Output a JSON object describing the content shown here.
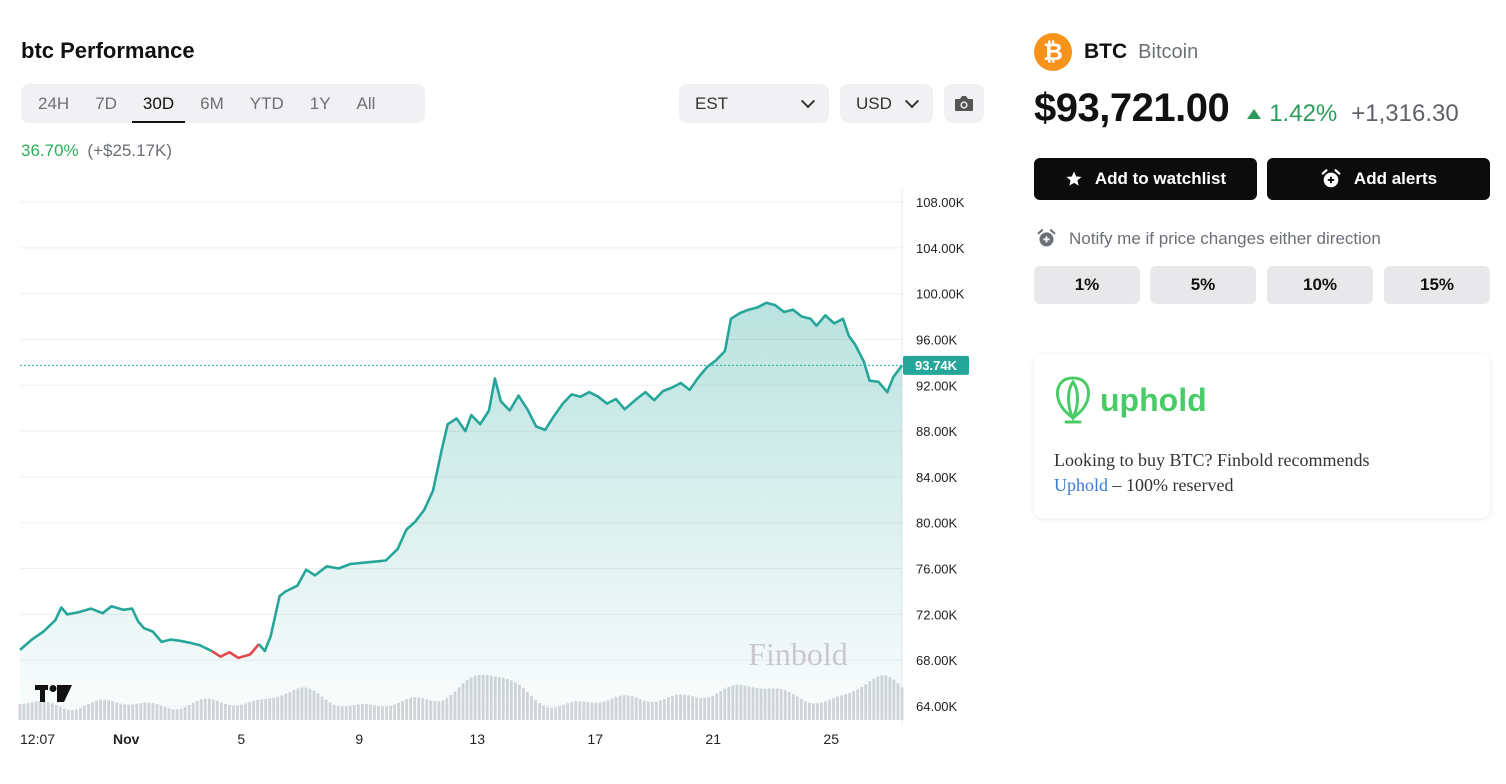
{
  "header": {
    "title": "btc Performance"
  },
  "range_tabs": [
    "24H",
    "7D",
    "30D",
    "6M",
    "YTD",
    "1Y",
    "All"
  ],
  "active_range": "30D",
  "timezone_select": {
    "value": "EST"
  },
  "currency_select": {
    "value": "USD"
  },
  "performance": {
    "percent": "36.70%",
    "absolute": "(+$25.17K)"
  },
  "coin": {
    "symbol": "BTC",
    "name": "Bitcoin",
    "price": "$93,721.00",
    "change_pct": "1.42%",
    "change_abs": "+1,316.30",
    "logo_glyph": "₿"
  },
  "actions": {
    "watchlist_label": "Add to watchlist",
    "alerts_label": "Add alerts"
  },
  "notify": {
    "text": "Notify me if price changes either direction",
    "options": [
      "1%",
      "5%",
      "10%",
      "15%"
    ]
  },
  "promo": {
    "brand": "uphold",
    "line1": "Looking to buy BTC? Finbold recommends",
    "link_text": "Uphold",
    "line2_rest": " – 100% reserved"
  },
  "chart_data": {
    "type": "line",
    "title": "",
    "current_price_label": "93.74K",
    "current_price": 93.74,
    "watermark": "Finbold",
    "ylim": [
      64,
      108
    ],
    "y_unit": "K",
    "y_ticks": [
      108,
      104,
      100,
      96,
      92,
      88,
      84,
      80,
      76,
      72,
      68,
      64
    ],
    "y_tick_labels": [
      "108.00K",
      "104.00K",
      "100.00K",
      "96.00K",
      "92.00K",
      "88.00K",
      "84.00K",
      "80.00K",
      "76.00K",
      "72.00K",
      "68.00K",
      "64.00K"
    ],
    "x_tick_labels": [
      {
        "label": "12:07",
        "day": 0.0
      },
      {
        "label": "Nov",
        "day": 3.6
      },
      {
        "label": "5",
        "day": 7.5
      },
      {
        "label": "9",
        "day": 11.5
      },
      {
        "label": "13",
        "day": 15.5
      },
      {
        "label": "17",
        "day": 19.5
      },
      {
        "label": "21",
        "day": 23.5
      },
      {
        "label": "25",
        "day": 27.5
      }
    ],
    "x_days_span": 29.9,
    "series": [
      {
        "values": [
          [
            0.0,
            68.9
          ],
          [
            0.4,
            69.8
          ],
          [
            0.8,
            70.5
          ],
          [
            1.2,
            71.5
          ],
          [
            1.4,
            72.6
          ],
          [
            1.6,
            72.0
          ],
          [
            2.0,
            72.2
          ],
          [
            2.4,
            72.5
          ],
          [
            2.8,
            72.1
          ],
          [
            3.1,
            72.7
          ],
          [
            3.5,
            72.4
          ],
          [
            3.8,
            72.5
          ],
          [
            4.0,
            71.4
          ],
          [
            4.2,
            70.8
          ],
          [
            4.5,
            70.5
          ],
          [
            4.8,
            69.6
          ],
          [
            5.1,
            69.8
          ],
          [
            5.4,
            69.7
          ],
          [
            5.8,
            69.5
          ],
          [
            6.1,
            69.3
          ],
          [
            6.5,
            68.8
          ],
          [
            6.8,
            68.3
          ],
          [
            7.1,
            68.7
          ],
          [
            7.4,
            68.2
          ],
          [
            7.8,
            68.5
          ],
          [
            8.1,
            69.4
          ],
          [
            8.3,
            68.8
          ],
          [
            8.5,
            70.1
          ],
          [
            8.8,
            73.6
          ],
          [
            9.0,
            74.0
          ],
          [
            9.4,
            74.5
          ],
          [
            9.7,
            75.9
          ],
          [
            10.0,
            75.4
          ],
          [
            10.4,
            76.2
          ],
          [
            10.8,
            76.0
          ],
          [
            11.2,
            76.4
          ],
          [
            11.6,
            76.5
          ],
          [
            12.0,
            76.6
          ],
          [
            12.4,
            76.7
          ],
          [
            12.8,
            77.7
          ],
          [
            13.1,
            79.4
          ],
          [
            13.4,
            80.1
          ],
          [
            13.7,
            81.1
          ],
          [
            14.0,
            82.8
          ],
          [
            14.3,
            86.4
          ],
          [
            14.5,
            88.6
          ],
          [
            14.8,
            89.1
          ],
          [
            15.1,
            88.0
          ],
          [
            15.3,
            89.4
          ],
          [
            15.6,
            88.6
          ],
          [
            15.9,
            89.8
          ],
          [
            16.1,
            92.6
          ],
          [
            16.3,
            90.6
          ],
          [
            16.6,
            89.8
          ],
          [
            16.9,
            91.1
          ],
          [
            17.2,
            89.9
          ],
          [
            17.5,
            88.4
          ],
          [
            17.8,
            88.1
          ],
          [
            18.1,
            89.3
          ],
          [
            18.4,
            90.4
          ],
          [
            18.7,
            91.2
          ],
          [
            19.0,
            91.0
          ],
          [
            19.3,
            91.4
          ],
          [
            19.6,
            91.0
          ],
          [
            19.9,
            90.4
          ],
          [
            20.2,
            90.8
          ],
          [
            20.5,
            89.9
          ],
          [
            20.9,
            90.8
          ],
          [
            21.2,
            91.4
          ],
          [
            21.5,
            90.7
          ],
          [
            21.8,
            91.5
          ],
          [
            22.1,
            91.8
          ],
          [
            22.4,
            92.2
          ],
          [
            22.7,
            91.6
          ],
          [
            23.0,
            92.7
          ],
          [
            23.3,
            93.6
          ],
          [
            23.6,
            94.2
          ],
          [
            23.9,
            95.0
          ],
          [
            24.1,
            97.8
          ],
          [
            24.4,
            98.3
          ],
          [
            24.7,
            98.6
          ],
          [
            25.0,
            98.8
          ],
          [
            25.3,
            99.2
          ],
          [
            25.6,
            99.0
          ],
          [
            25.9,
            98.4
          ],
          [
            26.2,
            98.6
          ],
          [
            26.5,
            98.0
          ],
          [
            26.8,
            97.8
          ],
          [
            27.0,
            97.2
          ],
          [
            27.3,
            98.1
          ],
          [
            27.6,
            97.4
          ],
          [
            27.9,
            97.8
          ],
          [
            28.1,
            96.3
          ],
          [
            28.3,
            95.6
          ],
          [
            28.6,
            94.1
          ],
          [
            28.8,
            92.4
          ],
          [
            29.1,
            92.3
          ],
          [
            29.4,
            91.4
          ],
          [
            29.6,
            92.7
          ],
          [
            29.9,
            93.74
          ]
        ]
      }
    ]
  }
}
